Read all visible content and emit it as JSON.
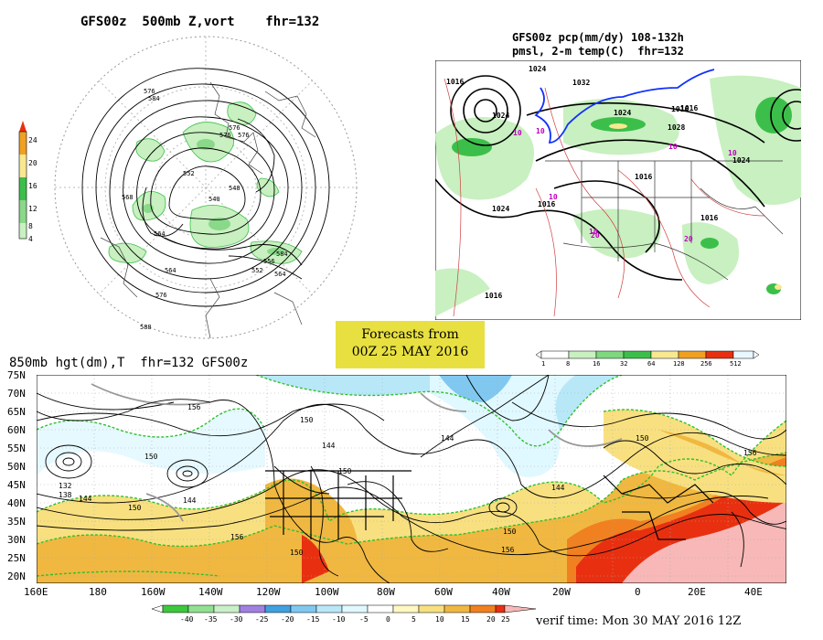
{
  "top_left": {
    "title": "GFS00z  500mb Z,vort    fhr=132",
    "colorbar_ticks": [
      "24",
      "20",
      "16",
      "12",
      "8",
      "4"
    ],
    "contour_labels": [
      "576",
      "584",
      "576",
      "576",
      "576",
      "552",
      "540",
      "548",
      "568",
      "564",
      "584",
      "564",
      "556",
      "552",
      "564",
      "576",
      "588"
    ],
    "colors": {
      "light_green": "#c8f0c0",
      "mid_green": "#8ad88a",
      "green": "#3cbf4a",
      "yellow": "#f8e890",
      "orange": "#f0a020",
      "red": "#e83010"
    }
  },
  "top_right": {
    "title_line1": "GFS00z pcp(mm/dy) 108-132h",
    "title_line2": "pmsl, 2-m temp(C)  fhr=132",
    "isobar_labels": [
      "1016",
      "1024",
      "1024",
      "1032",
      "1024",
      "1016",
      "1024",
      "1016",
      "1016",
      "1016",
      "1024",
      "1016",
      "1028",
      "1016"
    ],
    "temp_labels": [
      "10",
      "10",
      "10",
      "10",
      "10",
      "20",
      "10",
      "20"
    ],
    "colorbar_ticks": [
      "1",
      "8",
      "16",
      "32",
      "64",
      "128",
      "256",
      "512"
    ],
    "colorbar_colors": [
      "#ffffff",
      "#c8f0c0",
      "#7ed87e",
      "#3cbf4a",
      "#f8e890",
      "#f0a020",
      "#e83010",
      "#e8f8ff"
    ]
  },
  "forecast_box": {
    "line1": "Forecasts from",
    "line2": "00Z 25 MAY 2016",
    "background": "#e8e040"
  },
  "bottom": {
    "title": "850mb hgt(dm),T  fhr=132 GFS00z",
    "lat_labels": [
      "75N",
      "70N",
      "65N",
      "60N",
      "55N",
      "50N",
      "45N",
      "40N",
      "35N",
      "30N",
      "25N",
      "20N"
    ],
    "lon_labels": [
      "160E",
      "180",
      "160W",
      "140W",
      "120W",
      "100W",
      "80W",
      "60W",
      "40W",
      "20W",
      "0",
      "20E",
      "40E"
    ],
    "contour_labels": [
      "132",
      "138",
      "144",
      "150",
      "144",
      "150",
      "156",
      "150",
      "144",
      "150",
      "144",
      "156",
      "144",
      "150",
      "156",
      "150",
      "150",
      "156"
    ],
    "colorbar_ticks": [
      "-40",
      "-35",
      "-30",
      "-25",
      "-20",
      "-15",
      "-10",
      "-5",
      "0",
      "5",
      "10",
      "15",
      "20",
      "25"
    ],
    "colorbar_colors": [
      "#3cc83c",
      "#90e090",
      "#c8f0c8",
      "#a080e0",
      "#40a0e0",
      "#80c8f0",
      "#b8e8f8",
      "#e0f8ff",
      "#ffffff",
      "#fff8c0",
      "#f8e080",
      "#f0b840",
      "#f08020",
      "#e83010",
      "#f8b8b8"
    ],
    "verif": "verif time: Mon 30 MAY 2016 12Z"
  }
}
